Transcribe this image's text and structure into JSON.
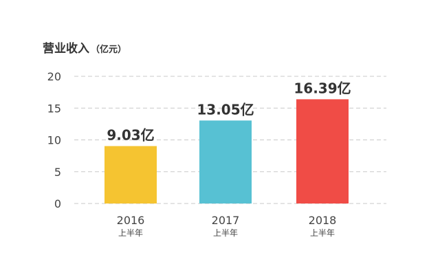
{
  "chart_data": {
    "type": "bar",
    "title": "营业收入",
    "unit": "（亿元）",
    "categories": [
      "2016",
      "2017",
      "2018"
    ],
    "category_sublabel": "上半年",
    "values": [
      9.03,
      13.05,
      16.39
    ],
    "value_labels": [
      "9.03亿",
      "13.05亿",
      "16.39亿"
    ],
    "colors": [
      "#F5C431",
      "#57C1D3",
      "#F04C46"
    ],
    "ylim": [
      0,
      20
    ],
    "yticks": [
      0,
      5,
      10,
      15,
      20
    ],
    "grid": true
  }
}
